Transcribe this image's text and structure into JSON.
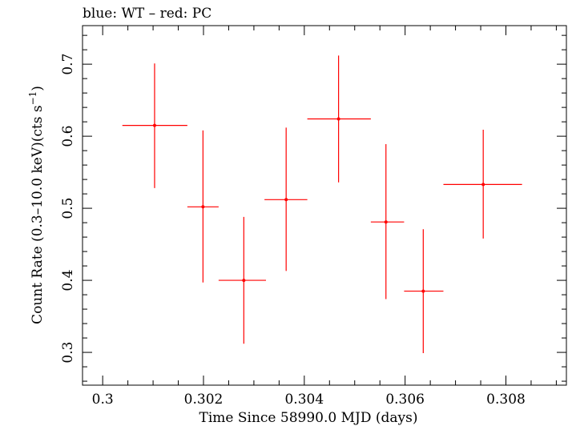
{
  "chart_data": {
    "type": "scatter",
    "title": "blue: WT – red: PC",
    "xlabel": "Time Since 58990.0 MJD (days)",
    "ylabel_main": "Count Rate (0.3–10.0 keV)(cts s",
    "ylabel_sup": "−1",
    "ylabel_close": ")",
    "xlim": [
      0.2996,
      0.3092
    ],
    "ylim": [
      0.2545,
      0.7535
    ],
    "x_ticks": [
      0.3,
      0.302,
      0.304,
      0.306,
      0.308
    ],
    "x_tick_labels": [
      "0.3",
      "0.302",
      "0.304",
      "0.306",
      "0.308"
    ],
    "y_ticks": [
      0.3,
      0.4,
      0.5,
      0.6,
      0.7
    ],
    "y_tick_labels": [
      "0.3",
      "0.4",
      "0.5",
      "0.6",
      "0.7"
    ],
    "grid": false,
    "series": [
      {
        "color": "#ff0000",
        "points": [
          {
            "x": 0.30103,
            "xlo": 0.30039,
            "xhi": 0.30168,
            "y": 0.615,
            "ylo": 0.528,
            "yhi": 0.701
          },
          {
            "x": 0.30199,
            "xlo": 0.30168,
            "xhi": 0.3023,
            "y": 0.502,
            "ylo": 0.397,
            "yhi": 0.608
          },
          {
            "x": 0.3028,
            "xlo": 0.3023,
            "xhi": 0.30324,
            "y": 0.4,
            "ylo": 0.312,
            "yhi": 0.488
          },
          {
            "x": 0.30364,
            "xlo": 0.30321,
            "xhi": 0.30406,
            "y": 0.512,
            "ylo": 0.413,
            "yhi": 0.612
          },
          {
            "x": 0.30468,
            "xlo": 0.30406,
            "xhi": 0.30532,
            "y": 0.624,
            "ylo": 0.536,
            "yhi": 0.712
          },
          {
            "x": 0.30562,
            "xlo": 0.30532,
            "xhi": 0.30598,
            "y": 0.481,
            "ylo": 0.374,
            "yhi": 0.589
          },
          {
            "x": 0.30636,
            "xlo": 0.30598,
            "xhi": 0.30676,
            "y": 0.385,
            "ylo": 0.299,
            "yhi": 0.471
          },
          {
            "x": 0.30755,
            "xlo": 0.30676,
            "xhi": 0.30832,
            "y": 0.533,
            "ylo": 0.458,
            "yhi": 0.609
          }
        ]
      }
    ]
  }
}
